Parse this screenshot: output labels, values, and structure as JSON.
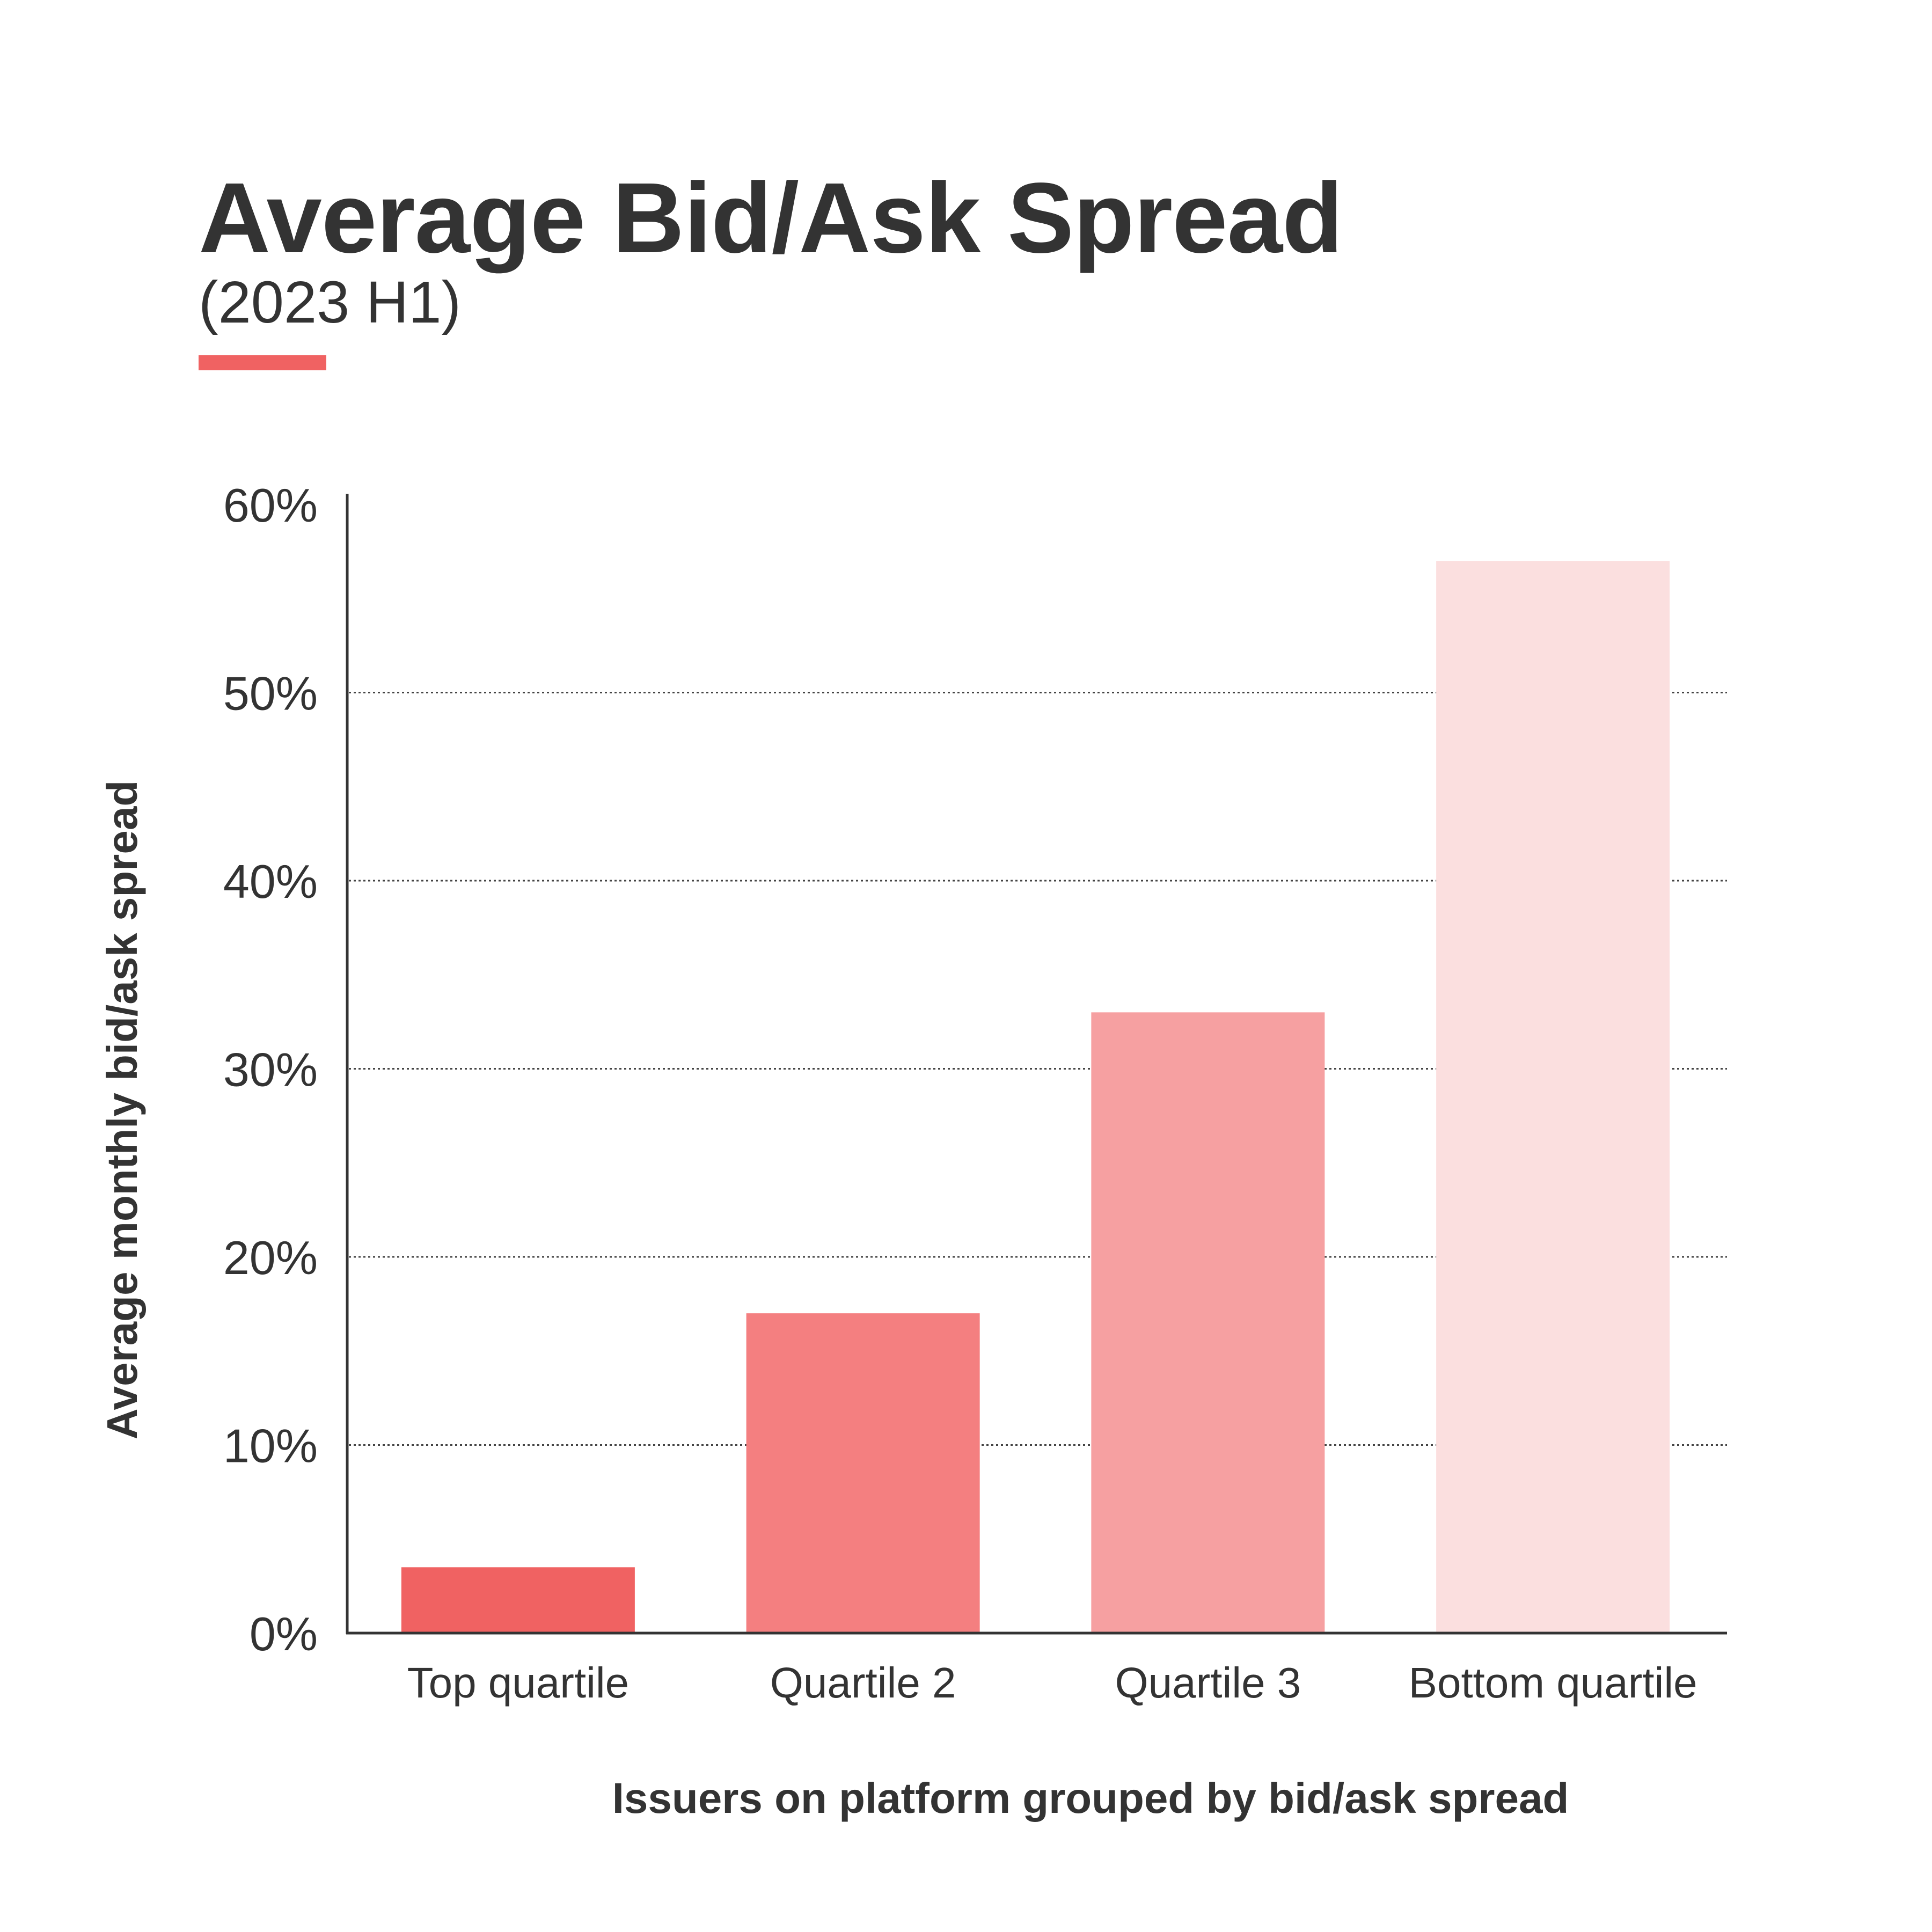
{
  "header": {
    "title": "Average Bid/Ask Spread",
    "subtitle": "(2023 H1)",
    "accent_color": "#f06262"
  },
  "chart_data": {
    "type": "bar",
    "title": "Average Bid/Ask Spread",
    "subtitle": "(2023 H1)",
    "categories": [
      "Top quartile",
      "Quartile 2",
      "Quartile 3",
      "Bottom quartile"
    ],
    "values": [
      3.5,
      17,
      33,
      57
    ],
    "bar_colors": [
      "#f06262",
      "#f47f80",
      "#f6a0a1",
      "#fbdfdf"
    ],
    "xlabel": "Issuers on platform grouped by bid/ask spread",
    "ylabel": "Average monthly bid/ask spread",
    "ylim": [
      0,
      60
    ],
    "yticks": [
      0,
      10,
      20,
      30,
      40,
      50,
      60
    ],
    "ytick_labels": [
      "0%",
      "10%",
      "20%",
      "30%",
      "40%",
      "50%",
      "60%"
    ],
    "grid": true,
    "grid_style": "dotted",
    "legend": "none"
  }
}
